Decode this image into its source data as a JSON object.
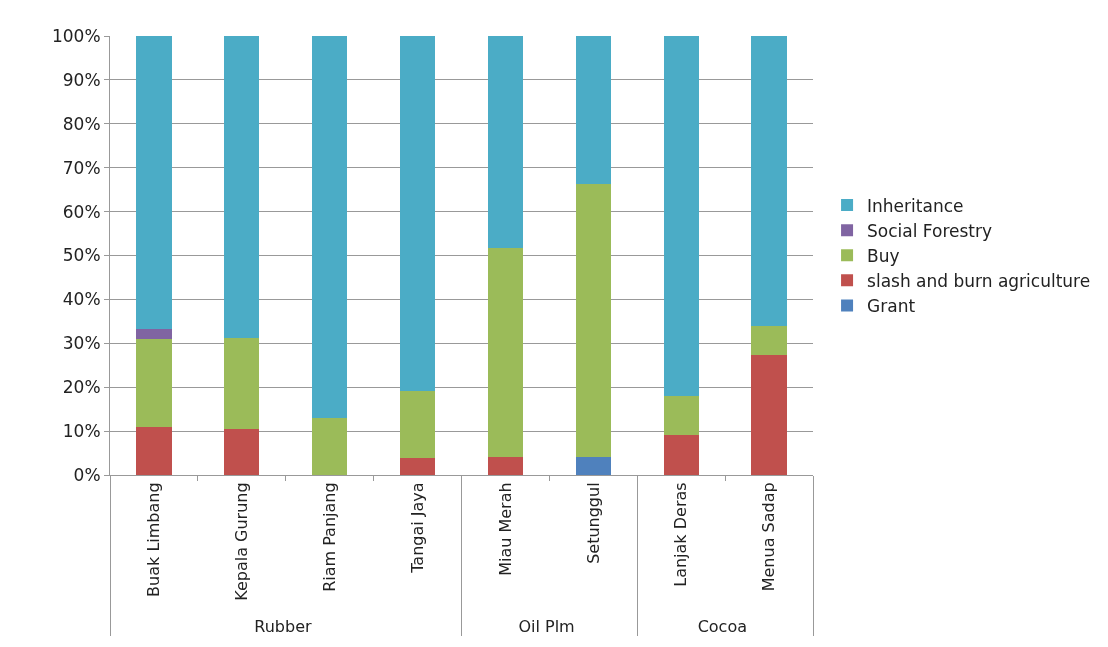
{
  "chart_data": {
    "type": "bar",
    "stacked": true,
    "categories": [
      "Buak Limbang",
      "Kepala Gurung",
      "Riam Panjang",
      "Tangai Jaya",
      "Miau Merah",
      "Setunggul",
      "Lanjak Deras",
      "Menua Sadap"
    ],
    "annotations": [
      "Rubber",
      "Oil Plm",
      "Cocoa"
    ],
    "series": [
      {
        "name": "Grant",
        "color": "#4f81bd",
        "values": [
          0,
          0,
          0,
          0,
          0,
          4.2,
          0,
          0
        ]
      },
      {
        "name": "slash and burn agriculture",
        "color": "#c0504d",
        "values": [
          10.9,
          10.4,
          0,
          3.8,
          4.2,
          0,
          9.0,
          27.3
        ]
      },
      {
        "name": "Buy",
        "color": "#9bbb59",
        "values": [
          20.1,
          20.9,
          13.0,
          15.3,
          47.6,
          62.2,
          9.0,
          6.7
        ]
      },
      {
        "name": "Social Forestry",
        "color": "#8064a2",
        "values": [
          2.3,
          0,
          0,
          0,
          0,
          0,
          0,
          0
        ]
      },
      {
        "name": "Inheritance",
        "color": "#4bacc6",
        "values": [
          66.7,
          68.7,
          87.0,
          80.9,
          48.2,
          33.6,
          82.0,
          66.0
        ]
      }
    ],
    "ylim": [
      0,
      100
    ],
    "yticks": [
      {
        "value": 0,
        "label": "0%"
      },
      {
        "value": 10,
        "label": "10%"
      },
      {
        "value": 20,
        "label": "20%"
      },
      {
        "value": 30,
        "label": "30%"
      },
      {
        "value": 40,
        "label": "40%"
      },
      {
        "value": 50,
        "label": "50%"
      },
      {
        "value": 60,
        "label": "60%"
      },
      {
        "value": 70,
        "label": "70%"
      },
      {
        "value": 80,
        "label": "80%"
      },
      {
        "value": 90,
        "label": "90%"
      },
      {
        "value": 100,
        "label": "100%"
      }
    ],
    "grid": "y",
    "legend": "right"
  }
}
